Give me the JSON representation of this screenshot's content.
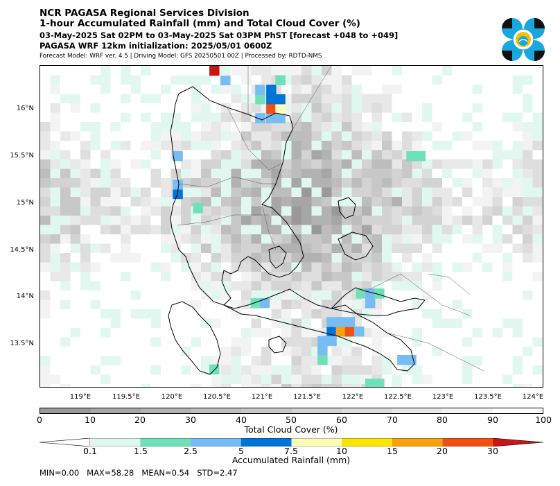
{
  "header": {
    "line1": "NCR PAGASA Regional Services Division",
    "line2": "1-hour Accumulated Rainfall (mm) and Total Cloud Cover (%)",
    "line3": "03-May-2025 Sat 02PM to 03-May-2025 Sat 03PM PhST [forecast +048 to +049]",
    "line4": "PAGASA WRF 12km initialization: 2025/05/01 0600Z",
    "line5": "Forecast Model: WRF ver. 4.5 | Driving Model: GFS 20250501 00Z | Processed by: RDTD-NMS"
  },
  "logo": {
    "icon": "pagasa-seal-icon",
    "colors": [
      "#111111",
      "#19a7e0",
      "#f2c200"
    ]
  },
  "map": {
    "lat_labels": [
      "16°N",
      "15.5°N",
      "15°N",
      "14.5°N",
      "14°N",
      "13.5°N"
    ],
    "lat_values": [
      16,
      15.5,
      15,
      14.5,
      14,
      13.5
    ],
    "lon_labels": [
      "119°E",
      "119.5°E",
      "120°E",
      "120.5°E",
      "121°E",
      "121.5°E",
      "122°E",
      "122.5°E",
      "123°E",
      "123.5°E",
      "124°E"
    ],
    "lon_values": [
      119,
      119.5,
      120,
      120.5,
      121,
      121.5,
      122,
      122.5,
      123,
      123.5,
      124
    ],
    "lon_range": [
      118.6,
      124.1
    ],
    "lat_range": [
      13.05,
      16.45
    ],
    "rain_cells": [
      {
        "lon": 121.0,
        "lat": 15.9,
        "mm": 3.0
      },
      {
        "lon": 121.12,
        "lat": 15.9,
        "mm": 3.0
      },
      {
        "lon": 121.22,
        "lat": 15.9,
        "mm": 3.0
      },
      {
        "lon": 121.12,
        "lat": 16.0,
        "mm": 25.0
      },
      {
        "lon": 121.22,
        "lat": 16.0,
        "mm": 8.0
      },
      {
        "lon": 121.22,
        "lat": 16.1,
        "mm": 6.0
      },
      {
        "lon": 121.12,
        "lat": 16.1,
        "mm": 6.0
      },
      {
        "lon": 121.0,
        "lat": 16.1,
        "mm": 1.8
      },
      {
        "lon": 121.12,
        "lat": 16.2,
        "mm": 6.0
      },
      {
        "lon": 121.0,
        "lat": 16.2,
        "mm": 3.0
      },
      {
        "lon": 121.22,
        "lat": 16.3,
        "mm": 2.0
      },
      {
        "lon": 120.62,
        "lat": 16.3,
        "mm": 3.0
      },
      {
        "lon": 120.5,
        "lat": 16.4,
        "mm": 40.0
      },
      {
        "lon": 120.62,
        "lat": 16.4,
        "mm": 1.0
      },
      {
        "lon": 120.1,
        "lat": 15.5,
        "mm": 3.0
      },
      {
        "lon": 120.1,
        "lat": 15.1,
        "mm": 6.0
      },
      {
        "lon": 120.1,
        "lat": 15.2,
        "mm": 3.0
      },
      {
        "lon": 120.32,
        "lat": 14.95,
        "mm": 1.8
      },
      {
        "lon": 120.95,
        "lat": 13.95,
        "mm": 1.8
      },
      {
        "lon": 121.05,
        "lat": 13.95,
        "mm": 3.0
      },
      {
        "lon": 122.2,
        "lat": 13.95,
        "mm": 3.0
      },
      {
        "lon": 122.1,
        "lat": 14.05,
        "mm": 1.8
      },
      {
        "lon": 122.2,
        "lat": 14.05,
        "mm": 3.0
      },
      {
        "lon": 122.3,
        "lat": 14.05,
        "mm": 2.0
      },
      {
        "lon": 121.78,
        "lat": 13.65,
        "mm": 6.0
      },
      {
        "lon": 121.88,
        "lat": 13.65,
        "mm": 17.0
      },
      {
        "lon": 121.98,
        "lat": 13.65,
        "mm": 22.0
      },
      {
        "lon": 122.08,
        "lat": 13.65,
        "mm": 3.0
      },
      {
        "lon": 121.78,
        "lat": 13.75,
        "mm": 3.0
      },
      {
        "lon": 121.88,
        "lat": 13.75,
        "mm": 3.0
      },
      {
        "lon": 121.98,
        "lat": 13.75,
        "mm": 3.0
      },
      {
        "lon": 121.68,
        "lat": 13.55,
        "mm": 3.0
      },
      {
        "lon": 121.78,
        "lat": 13.55,
        "mm": 3.0
      },
      {
        "lon": 121.68,
        "lat": 13.45,
        "mm": 3.0
      },
      {
        "lon": 121.68,
        "lat": 13.35,
        "mm": 1.8
      },
      {
        "lon": 122.55,
        "lat": 13.35,
        "mm": 3.0
      },
      {
        "lon": 122.65,
        "lat": 13.35,
        "mm": 3.0
      },
      {
        "lon": 122.65,
        "lat": 15.5,
        "mm": 1.8
      },
      {
        "lon": 122.75,
        "lat": 15.5,
        "mm": 1.8
      },
      {
        "lon": 122.2,
        "lat": 13.1,
        "mm": 1.8
      },
      {
        "lon": 122.3,
        "lat": 13.1,
        "mm": 1.8
      },
      {
        "lon": 120.5,
        "lat": 13.25,
        "mm": 1.8
      }
    ]
  },
  "cloud_colorbar": {
    "label": "Total Cloud Cover (%)",
    "ticks": [
      "0",
      "10",
      "20",
      "30",
      "40",
      "50",
      "60",
      "70",
      "80",
      "90",
      "100"
    ],
    "colors": [
      "#999999",
      "#a6a6a6",
      "#b2b2b2",
      "#bdbdbd",
      "#c8c8c8",
      "#d3d3d3",
      "#dedede",
      "#e8e8e8",
      "#f3f3f3",
      "#ffffff"
    ]
  },
  "rain_colorbar": {
    "label": "Accumulated Rainfall (mm)",
    "ticks": [
      "0.1",
      "1.5",
      "2.5",
      "5",
      "7.5",
      "10",
      "15",
      "20",
      "30"
    ],
    "bounds": [
      0.1,
      1.5,
      2.5,
      5,
      7.5,
      10,
      15,
      20,
      30
    ],
    "colors": [
      "#e0f8ef",
      "#70e0b8",
      "#78bcf4",
      "#0074d8",
      "#fefeb8",
      "#fae600",
      "#f6a10d",
      "#f05010",
      "#c81618"
    ],
    "low_color": "#ffffff"
  },
  "stats": {
    "min_label": "MIN=0.00",
    "max_label": "MAX=58.28",
    "mean_label": "MEAN=0.54",
    "std_label": "STD=2.47"
  }
}
